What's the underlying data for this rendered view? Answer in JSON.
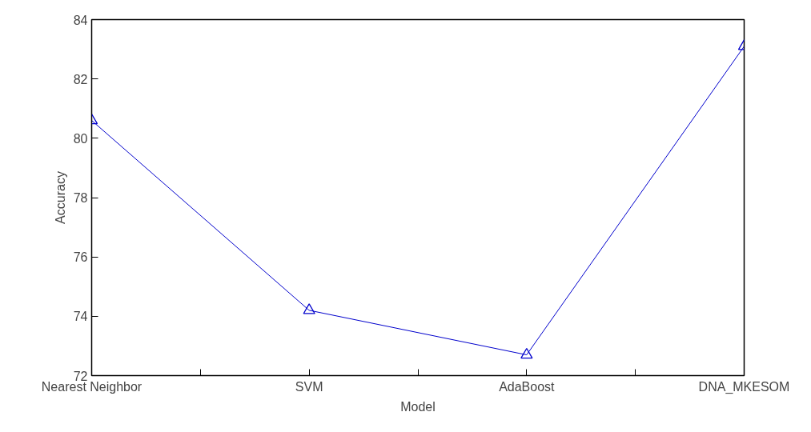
{
  "chart_data": {
    "type": "line",
    "xlabel": "Model",
    "ylabel": "Accuracy",
    "categories": [
      "Nearest Neighbor",
      "SVM",
      "AdaBoost",
      "DNA_MKESOM"
    ],
    "series": [
      {
        "color": "#0000cc",
        "values": [
          80.6,
          74.2,
          72.7,
          83.1
        ]
      }
    ],
    "ylim": [
      72,
      84
    ],
    "yticks": [
      72,
      74,
      76,
      78,
      80,
      82,
      84
    ],
    "marker": "triangle",
    "line_style": "solid"
  }
}
